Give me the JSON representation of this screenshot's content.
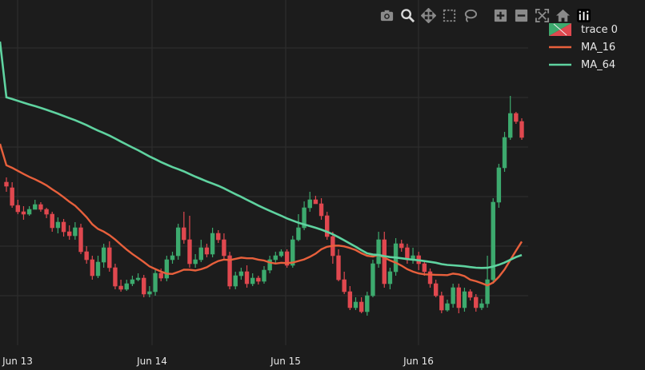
{
  "modebar": {
    "icons": [
      "camera-icon",
      "zoom-icon",
      "pan-icon",
      "box-select-icon",
      "lasso-icon",
      "zoom-in-icon",
      "zoom-out-icon",
      "autoscale-icon",
      "home-icon",
      "plotly-logo-icon"
    ],
    "active": "zoom-icon"
  },
  "chart_data": {
    "type": "candlestick",
    "xlabel": "",
    "ylabel": "",
    "x_tick_labels": [
      "Jun 13",
      "Jun 14",
      "Jun 15",
      "Jun 16"
    ],
    "y_tick_labels": [],
    "grid": true,
    "legend_position": "top-right",
    "colors": {
      "increasing": "#3daa6e",
      "decreasing": "#e0484f",
      "ma_16": "#e8603c",
      "ma_64": "#5fd3a0"
    },
    "series": [
      {
        "name": "trace 0",
        "kind": "ohlc"
      },
      {
        "name": "MA_16",
        "kind": "line"
      },
      {
        "name": "MA_64",
        "kind": "line"
      }
    ],
    "candles": [
      [
        228,
        233,
        222,
        240
      ],
      [
        235,
        257,
        228,
        260
      ],
      [
        257,
        265,
        250,
        268
      ],
      [
        265,
        268,
        258,
        275
      ],
      [
        268,
        262,
        258,
        270
      ],
      [
        262,
        256,
        250,
        262
      ],
      [
        256,
        262,
        253,
        265
      ],
      [
        262,
        268,
        260,
        273
      ],
      [
        268,
        285,
        265,
        290
      ],
      [
        285,
        278,
        272,
        292
      ],
      [
        278,
        290,
        274,
        296
      ],
      [
        290,
        295,
        282,
        300
      ],
      [
        295,
        285,
        278,
        300
      ],
      [
        285,
        315,
        280,
        318
      ],
      [
        315,
        325,
        308,
        330
      ],
      [
        325,
        345,
        320,
        350
      ],
      [
        345,
        328,
        320,
        348
      ],
      [
        328,
        310,
        305,
        335
      ],
      [
        310,
        335,
        302,
        340
      ],
      [
        335,
        358,
        330,
        362
      ],
      [
        358,
        362,
        350,
        365
      ],
      [
        362,
        355,
        350,
        364
      ],
      [
        355,
        350,
        345,
        358
      ],
      [
        350,
        348,
        342,
        352
      ],
      [
        348,
        368,
        344,
        372
      ],
      [
        368,
        365,
        358,
        372
      ],
      [
        365,
        342,
        338,
        370
      ],
      [
        342,
        348,
        336,
        352
      ],
      [
        348,
        325,
        320,
        352
      ],
      [
        325,
        320,
        315,
        330
      ],
      [
        320,
        285,
        280,
        325
      ],
      [
        285,
        300,
        265,
        305
      ],
      [
        300,
        330,
        270,
        335
      ],
      [
        330,
        325,
        318,
        335
      ],
      [
        325,
        310,
        300,
        328
      ],
      [
        310,
        318,
        305,
        322
      ],
      [
        318,
        292,
        285,
        322
      ],
      [
        292,
        300,
        288,
        304
      ],
      [
        300,
        320,
        292,
        325
      ],
      [
        320,
        358,
        315,
        362
      ],
      [
        358,
        345,
        340,
        362
      ],
      [
        345,
        340,
        335,
        350
      ],
      [
        340,
        355,
        332,
        360
      ],
      [
        355,
        348,
        342,
        358
      ],
      [
        348,
        352,
        345,
        356
      ],
      [
        352,
        338,
        333,
        355
      ],
      [
        338,
        325,
        320,
        342
      ],
      [
        325,
        320,
        315,
        330
      ],
      [
        320,
        315,
        312,
        322
      ],
      [
        315,
        332,
        312,
        335
      ],
      [
        332,
        300,
        295,
        335
      ],
      [
        300,
        285,
        268,
        302
      ],
      [
        285,
        260,
        252,
        288
      ],
      [
        260,
        250,
        240,
        265
      ],
      [
        250,
        255,
        245,
        255
      ],
      [
        255,
        270,
        248,
        275
      ],
      [
        270,
        296,
        265,
        300
      ],
      [
        296,
        320,
        290,
        330
      ],
      [
        320,
        350,
        312,
        352
      ],
      [
        350,
        365,
        340,
        368
      ],
      [
        365,
        385,
        358,
        388
      ],
      [
        385,
        378,
        372,
        388
      ],
      [
        378,
        390,
        372,
        392
      ],
      [
        390,
        370,
        365,
        395
      ],
      [
        370,
        330,
        325,
        372
      ],
      [
        330,
        300,
        290,
        335
      ],
      [
        300,
        355,
        290,
        360
      ],
      [
        355,
        340,
        335,
        362
      ],
      [
        340,
        305,
        298,
        345
      ],
      [
        305,
        310,
        300,
        315
      ],
      [
        310,
        325,
        305,
        330
      ],
      [
        325,
        320,
        310,
        330
      ],
      [
        320,
        330,
        315,
        338
      ],
      [
        330,
        340,
        328,
        345
      ],
      [
        340,
        355,
        336,
        360
      ],
      [
        355,
        370,
        350,
        372
      ],
      [
        370,
        388,
        365,
        392
      ],
      [
        388,
        380,
        375,
        390
      ],
      [
        380,
        360,
        355,
        385
      ],
      [
        360,
        385,
        355,
        392
      ],
      [
        385,
        365,
        360,
        390
      ],
      [
        365,
        372,
        362,
        376
      ],
      [
        372,
        385,
        368,
        390
      ],
      [
        385,
        380,
        374,
        388
      ],
      [
        380,
        350,
        320,
        385
      ],
      [
        350,
        253,
        248,
        355
      ],
      [
        253,
        210,
        205,
        260
      ],
      [
        210,
        172,
        165,
        215
      ],
      [
        172,
        142,
        120,
        175
      ],
      [
        142,
        152,
        140,
        155
      ],
      [
        152,
        172,
        148,
        175
      ]
    ]
  }
}
